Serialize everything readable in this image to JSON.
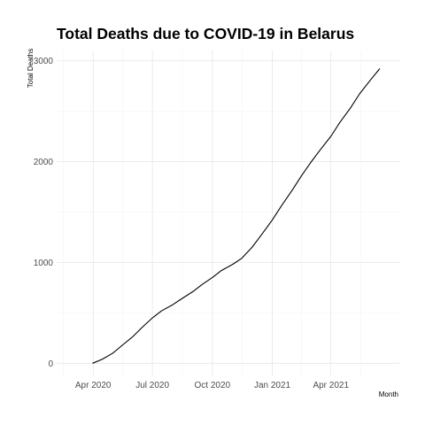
{
  "chart_data": {
    "type": "line",
    "title": "Total Deaths due to COVID-19 in Belarus",
    "xlabel": "Month",
    "ylabel": "Total Deaths",
    "ylim": [
      -120,
      3100
    ],
    "xlim": [
      "2020-02-05",
      "2021-07-15"
    ],
    "y_ticks": [
      0,
      1000,
      2000,
      3000
    ],
    "y_tick_labels": [
      "0",
      "1000",
      "2000",
      "3000"
    ],
    "x_ticks": [
      "2020-04-01",
      "2020-07-01",
      "2020-10-01",
      "2021-01-01",
      "2021-04-01"
    ],
    "x_tick_labels": [
      "Apr 2020",
      "Jul 2020",
      "Oct 2020",
      "Jan 2021",
      "Apr 2021"
    ],
    "grid": true,
    "series": [
      {
        "name": "Total Deaths",
        "color": "#000000",
        "x": [
          "2020-03-31",
          "2020-04-15",
          "2020-05-01",
          "2020-05-15",
          "2020-06-01",
          "2020-06-15",
          "2020-07-01",
          "2020-07-15",
          "2020-08-01",
          "2020-08-15",
          "2020-09-01",
          "2020-09-15",
          "2020-10-01",
          "2020-10-15",
          "2020-11-01",
          "2020-11-15",
          "2020-12-01",
          "2020-12-15",
          "2021-01-01",
          "2021-01-15",
          "2021-02-01",
          "2021-02-15",
          "2021-03-01",
          "2021-03-15",
          "2021-04-01",
          "2021-04-15",
          "2021-05-01",
          "2021-05-15",
          "2021-06-01",
          "2021-06-15"
        ],
        "values": [
          0,
          40,
          100,
          175,
          265,
          355,
          450,
          520,
          580,
          640,
          710,
          780,
          850,
          920,
          980,
          1040,
          1150,
          1270,
          1420,
          1560,
          1720,
          1860,
          1990,
          2110,
          2250,
          2390,
          2530,
          2670,
          2810,
          2920
        ]
      }
    ]
  }
}
